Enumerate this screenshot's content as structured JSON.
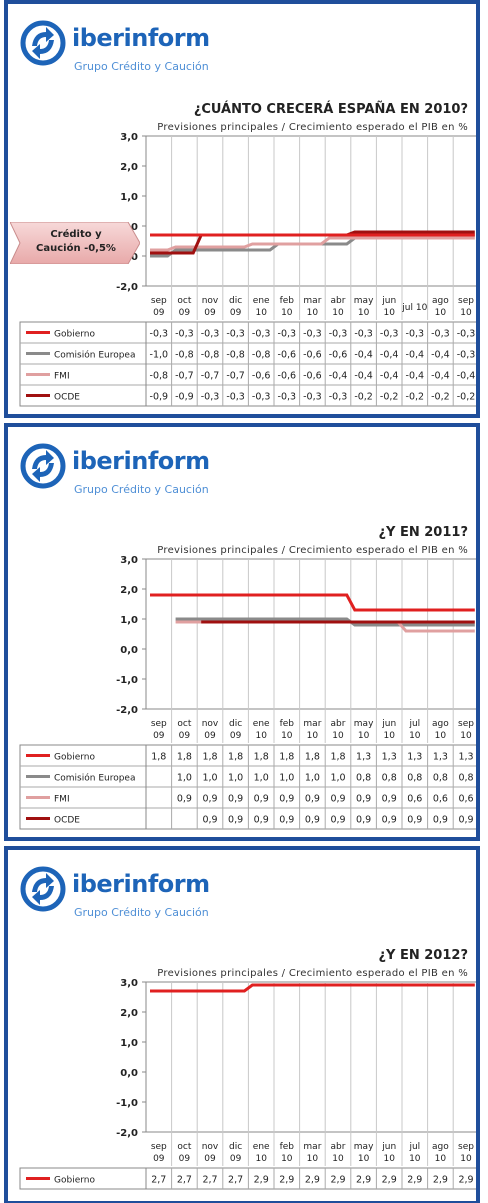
{
  "header": {
    "brand_prefix": "iber",
    "brand_suffix": "inform",
    "tagline": "Grupo Crédito y Caución"
  },
  "colors": {
    "frame": "#1f4e9b",
    "Gobierno": "#e02020",
    "Comisión Europea": "#8a8a8a",
    "FMI": "#e0a0a0",
    "OCDE": "#a01010"
  },
  "callout": {
    "text_line1": "Crédito y",
    "text_line2": "Caución -0,5%"
  },
  "chart_data": [
    {
      "type": "line",
      "title": "¿CUÁNTO CRECERÁ ESPAÑA EN 2010?",
      "subtitle": "Previsiones principales / Crecimiento esperado el PIB en %",
      "ylim": [
        -2.0,
        3.0
      ],
      "yticks": [
        "3,0",
        "2,0",
        "1,0",
        "0,0",
        "-1,0",
        "-2,0"
      ],
      "categories": [
        [
          "sep",
          "09"
        ],
        [
          "oct",
          "09"
        ],
        [
          "nov",
          "09"
        ],
        [
          "dic",
          "09"
        ],
        [
          "ene",
          "10"
        ],
        [
          "feb",
          "10"
        ],
        [
          "mar",
          "10"
        ],
        [
          "abr",
          "10"
        ],
        [
          "may",
          "10"
        ],
        [
          "jun",
          "10"
        ],
        [
          "jul 10",
          ""
        ],
        [
          "ago",
          "10"
        ],
        [
          "sep",
          "10"
        ]
      ],
      "series": [
        {
          "name": "Gobierno",
          "values": [
            -0.3,
            -0.3,
            -0.3,
            -0.3,
            -0.3,
            -0.3,
            -0.3,
            -0.3,
            -0.3,
            -0.3,
            -0.3,
            -0.3,
            -0.3
          ],
          "labels": [
            "-0,3",
            "-0,3",
            "-0,3",
            "-0,3",
            "-0,3",
            "-0,3",
            "-0,3",
            "-0,3",
            "-0,3",
            "-0,3",
            "-0,3",
            "-0,3",
            "-0,3"
          ]
        },
        {
          "name": "Comisión Europea",
          "values": [
            -1.0,
            -0.8,
            -0.8,
            -0.8,
            -0.8,
            -0.6,
            -0.6,
            -0.6,
            -0.4,
            -0.4,
            -0.4,
            -0.4,
            -0.3
          ],
          "labels": [
            "-1,0",
            "-0,8",
            "-0,8",
            "-0,8",
            "-0,8",
            "-0,6",
            "-0,6",
            "-0,6",
            "-0,4",
            "-0,4",
            "-0,4",
            "-0,4",
            "-0,3"
          ]
        },
        {
          "name": "FMI",
          "values": [
            -0.8,
            -0.7,
            -0.7,
            -0.7,
            -0.6,
            -0.6,
            -0.6,
            -0.4,
            -0.4,
            -0.4,
            -0.4,
            -0.4,
            -0.4
          ],
          "labels": [
            "-0,8",
            "-0,7",
            "-0,7",
            "-0,7",
            "-0,6",
            "-0,6",
            "-0,6",
            "-0,4",
            "-0,4",
            "-0,4",
            "-0,4",
            "-0,4",
            "-0,4"
          ]
        },
        {
          "name": "OCDE",
          "values": [
            -0.9,
            -0.9,
            -0.3,
            -0.3,
            -0.3,
            -0.3,
            -0.3,
            -0.3,
            -0.2,
            -0.2,
            -0.2,
            -0.2,
            -0.2
          ],
          "labels": [
            "-0,9",
            "-0,9",
            "-0,3",
            "-0,3",
            "-0,3",
            "-0,3",
            "-0,3",
            "-0,3",
            "-0,2",
            "-0,2",
            "-0,2",
            "-0,2",
            "-0,2"
          ]
        }
      ]
    },
    {
      "type": "line",
      "title": "¿Y EN 2011?",
      "subtitle": "Previsiones principales / Crecimiento esperado el PIB en %",
      "ylim": [
        -2.0,
        3.0
      ],
      "yticks": [
        "3,0",
        "2,0",
        "1,0",
        "0,0",
        "-1,0",
        "-2,0"
      ],
      "categories": [
        [
          "sep",
          "09"
        ],
        [
          "oct",
          "09"
        ],
        [
          "nov",
          "09"
        ],
        [
          "dic",
          "09"
        ],
        [
          "ene",
          "10"
        ],
        [
          "feb",
          "10"
        ],
        [
          "mar",
          "10"
        ],
        [
          "abr",
          "10"
        ],
        [
          "may",
          "10"
        ],
        [
          "jun",
          "10"
        ],
        [
          "jul",
          "10"
        ],
        [
          "ago",
          "10"
        ],
        [
          "sep",
          "10"
        ]
      ],
      "series": [
        {
          "name": "Gobierno",
          "values": [
            1.8,
            1.8,
            1.8,
            1.8,
            1.8,
            1.8,
            1.8,
            1.8,
            1.3,
            1.3,
            1.3,
            1.3,
            1.3
          ],
          "labels": [
            "1,8",
            "1,8",
            "1,8",
            "1,8",
            "1,8",
            "1,8",
            "1,8",
            "1,8",
            "1,3",
            "1,3",
            "1,3",
            "1,3",
            "1,3"
          ]
        },
        {
          "name": "Comisión Europea",
          "values": [
            null,
            1.0,
            1.0,
            1.0,
            1.0,
            1.0,
            1.0,
            1.0,
            0.8,
            0.8,
            0.8,
            0.8,
            0.8
          ],
          "labels": [
            "",
            "1,0",
            "1,0",
            "1,0",
            "1,0",
            "1,0",
            "1,0",
            "1,0",
            "0,8",
            "0,8",
            "0,8",
            "0,8",
            "0,8"
          ]
        },
        {
          "name": "FMI",
          "values": [
            null,
            0.9,
            0.9,
            0.9,
            0.9,
            0.9,
            0.9,
            0.9,
            0.9,
            0.9,
            0.6,
            0.6,
            0.6
          ],
          "labels": [
            "",
            "0,9",
            "0,9",
            "0,9",
            "0,9",
            "0,9",
            "0,9",
            "0,9",
            "0,9",
            "0,9",
            "0,6",
            "0,6",
            "0,6"
          ]
        },
        {
          "name": "OCDE",
          "values": [
            null,
            null,
            0.9,
            0.9,
            0.9,
            0.9,
            0.9,
            0.9,
            0.9,
            0.9,
            0.9,
            0.9,
            0.9
          ],
          "labels": [
            "",
            "",
            "0,9",
            "0,9",
            "0,9",
            "0,9",
            "0,9",
            "0,9",
            "0,9",
            "0,9",
            "0,9",
            "0,9",
            "0,9"
          ]
        }
      ]
    },
    {
      "type": "line",
      "title": "¿Y EN 2012?",
      "subtitle": "Previsiones principales / Crecimiento esperado el PIB en %",
      "ylim": [
        -2.0,
        3.0
      ],
      "yticks": [
        "3,0",
        "2,0",
        "1,0",
        "0,0",
        "-1,0",
        "-2,0"
      ],
      "categories": [
        [
          "sep",
          "09"
        ],
        [
          "oct",
          "09"
        ],
        [
          "nov",
          "09"
        ],
        [
          "dic",
          "09"
        ],
        [
          "ene",
          "10"
        ],
        [
          "feb",
          "10"
        ],
        [
          "mar",
          "10"
        ],
        [
          "abr",
          "10"
        ],
        [
          "may",
          "10"
        ],
        [
          "jun",
          "10"
        ],
        [
          "jul",
          "10"
        ],
        [
          "ago",
          "10"
        ],
        [
          "sep",
          "10"
        ]
      ],
      "series": [
        {
          "name": "Gobierno",
          "values": [
            2.7,
            2.7,
            2.7,
            2.7,
            2.9,
            2.9,
            2.9,
            2.9,
            2.9,
            2.9,
            2.9,
            2.9,
            2.9
          ],
          "labels": [
            "2,7",
            "2,7",
            "2,7",
            "2,7",
            "2,9",
            "2,9",
            "2,9",
            "2,9",
            "2,9",
            "2,9",
            "2,9",
            "2,9",
            "2,9"
          ]
        }
      ]
    }
  ]
}
